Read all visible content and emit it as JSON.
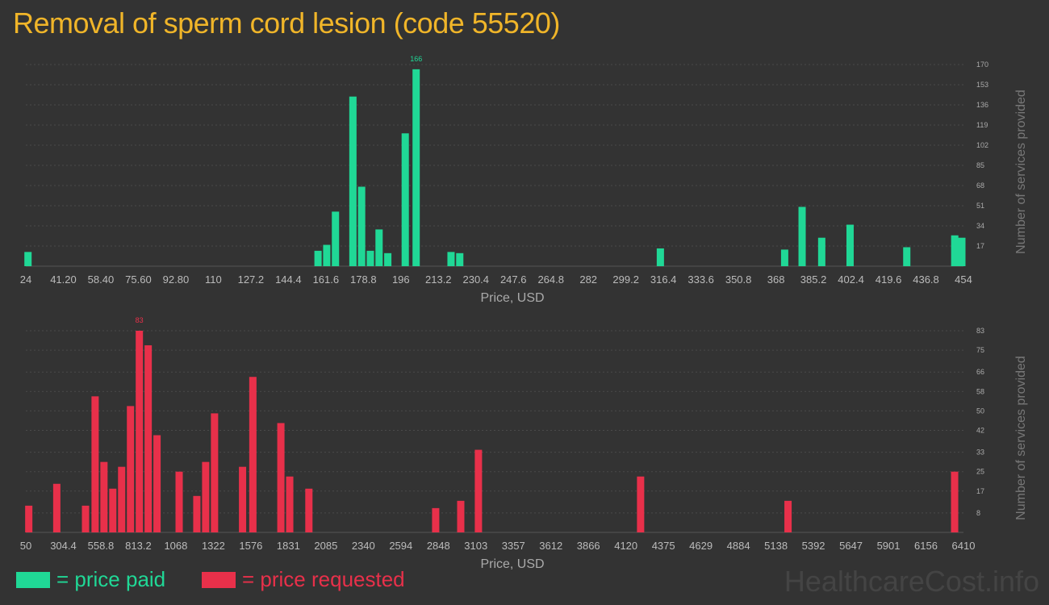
{
  "title": "Removal of sperm cord lesion (code 55520)",
  "colors": {
    "paid": "#20d896",
    "requested": "#e8304a",
    "title": "#f0b529"
  },
  "legend": {
    "paid_label": "= price paid",
    "requested_label": "= price requested"
  },
  "brand": "HealthcareCost.info",
  "chart_data": [
    {
      "type": "bar",
      "name": "price-paid",
      "series_name": "price paid",
      "color": "#20d896",
      "xlabel": "Price, USD",
      "ylabel": "Number of services provided",
      "xlim": [
        24,
        454
      ],
      "ylim": [
        0,
        170
      ],
      "x_ticks": [
        "24",
        "41.20",
        "58.40",
        "75.60",
        "92.80",
        "110",
        "127.2",
        "144.4",
        "161.6",
        "178.8",
        "196",
        "213.2",
        "230.4",
        "247.6",
        "264.8",
        "282",
        "299.2",
        "316.4",
        "333.6",
        "350.8",
        "368",
        "385.2",
        "402.4",
        "419.6",
        "436.8",
        "454"
      ],
      "y_ticks": [
        17,
        34,
        51,
        68,
        85,
        102,
        119,
        136,
        153,
        170
      ],
      "peak_label": "166",
      "bars": [
        {
          "x": 25,
          "y": 12
        },
        {
          "x": 158,
          "y": 13
        },
        {
          "x": 162,
          "y": 18
        },
        {
          "x": 166,
          "y": 46
        },
        {
          "x": 174,
          "y": 143
        },
        {
          "x": 178,
          "y": 67
        },
        {
          "x": 182,
          "y": 13
        },
        {
          "x": 186,
          "y": 31
        },
        {
          "x": 190,
          "y": 11
        },
        {
          "x": 198,
          "y": 112
        },
        {
          "x": 203,
          "y": 166
        },
        {
          "x": 219,
          "y": 12
        },
        {
          "x": 223,
          "y": 11
        },
        {
          "x": 315,
          "y": 15
        },
        {
          "x": 372,
          "y": 14
        },
        {
          "x": 380,
          "y": 50
        },
        {
          "x": 389,
          "y": 24
        },
        {
          "x": 402,
          "y": 35
        },
        {
          "x": 428,
          "y": 16
        },
        {
          "x": 450,
          "y": 26
        },
        {
          "x": 460,
          "y": 24
        }
      ]
    },
    {
      "type": "bar",
      "name": "price-requested",
      "series_name": "price requested",
      "color": "#e8304a",
      "xlabel": "Price, USD",
      "ylabel": "Number of services provided",
      "xlim": [
        50,
        6410
      ],
      "ylim": [
        0,
        83
      ],
      "x_ticks": [
        "50",
        "304.4",
        "558.8",
        "813.2",
        "1068",
        "1322",
        "1576",
        "1831",
        "2085",
        "2340",
        "2594",
        "2848",
        "3103",
        "3357",
        "3612",
        "3866",
        "4120",
        "4375",
        "4629",
        "4884",
        "5138",
        "5392",
        "5647",
        "5901",
        "6156",
        "6410"
      ],
      "y_ticks": [
        8,
        17,
        25,
        33,
        42,
        50,
        58,
        66,
        75,
        83
      ],
      "peak_label": "83",
      "bars": [
        {
          "x": 70,
          "y": 11
        },
        {
          "x": 260,
          "y": 20
        },
        {
          "x": 455,
          "y": 11
        },
        {
          "x": 520,
          "y": 56
        },
        {
          "x": 580,
          "y": 29
        },
        {
          "x": 640,
          "y": 18
        },
        {
          "x": 700,
          "y": 27
        },
        {
          "x": 760,
          "y": 52
        },
        {
          "x": 820,
          "y": 83
        },
        {
          "x": 880,
          "y": 77
        },
        {
          "x": 940,
          "y": 40
        },
        {
          "x": 1090,
          "y": 25
        },
        {
          "x": 1210,
          "y": 15
        },
        {
          "x": 1270,
          "y": 29
        },
        {
          "x": 1330,
          "y": 49
        },
        {
          "x": 1520,
          "y": 27
        },
        {
          "x": 1590,
          "y": 64
        },
        {
          "x": 1780,
          "y": 45
        },
        {
          "x": 1840,
          "y": 23
        },
        {
          "x": 1970,
          "y": 18
        },
        {
          "x": 2830,
          "y": 10
        },
        {
          "x": 3000,
          "y": 13
        },
        {
          "x": 3120,
          "y": 34
        },
        {
          "x": 4220,
          "y": 23
        },
        {
          "x": 5220,
          "y": 13
        },
        {
          "x": 6350,
          "y": 25
        }
      ]
    }
  ]
}
